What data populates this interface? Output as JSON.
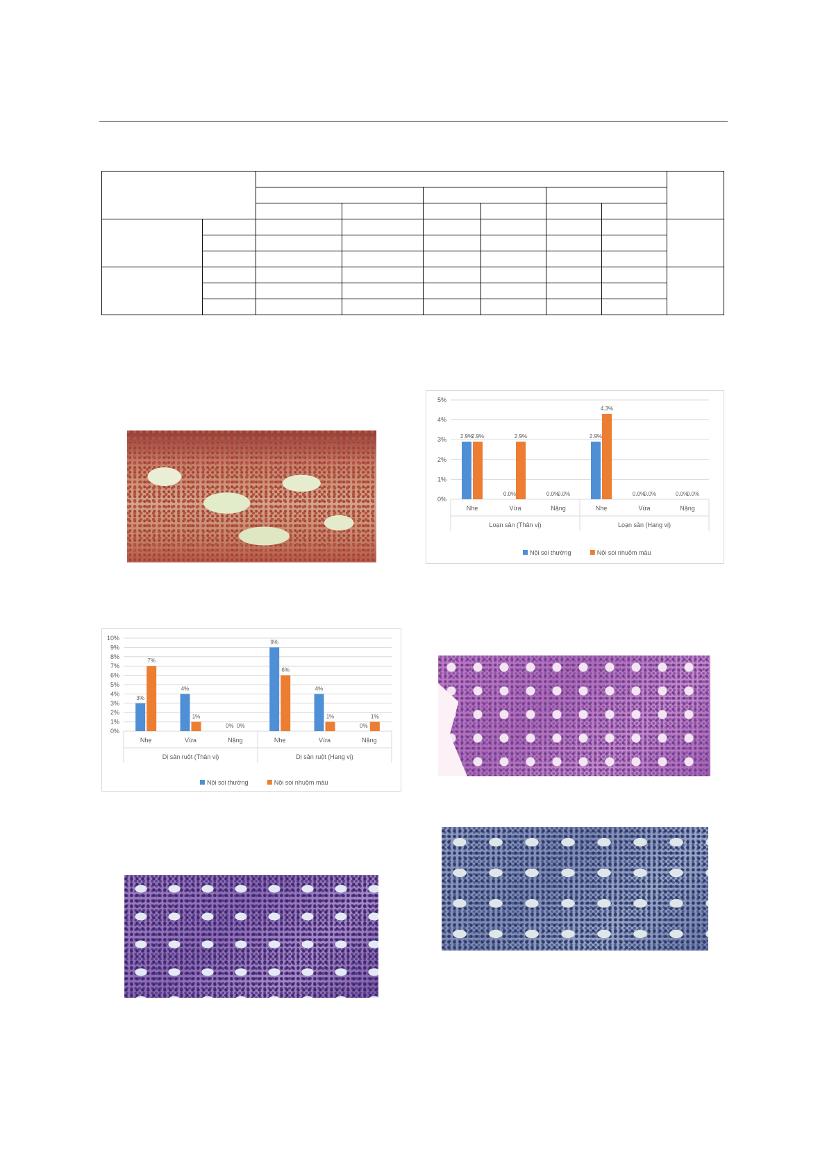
{
  "chart_data": [
    {
      "type": "bar",
      "title": "",
      "categories": [
        "Nhẹ",
        "Vừa",
        "Nặng",
        "Nhẹ",
        "Vừa",
        "Nặng"
      ],
      "group_labels": [
        "Loạn sản (Thân vị)",
        "Loạn sản (Hang vị)"
      ],
      "series": [
        {
          "name": "Nội soi thường",
          "color": "#4f8fd6",
          "values": [
            2.9,
            0,
            0,
            2.9,
            0,
            0
          ]
        },
        {
          "name": "Nội soi nhuộm màu",
          "color": "#ed7d31",
          "values": [
            2.9,
            2.9,
            0,
            4.3,
            0,
            0
          ]
        }
      ],
      "data_labels": [
        [
          "2.9%",
          "0.0%",
          "0.0%",
          "2.9%",
          "0.0%",
          "0.0%"
        ],
        [
          "2.9%",
          "2.9%",
          "0.0%",
          "4.3%",
          "0.0%",
          "0.0%"
        ]
      ],
      "ytick_labels": [
        "0%",
        "1%",
        "2%",
        "3%",
        "4%",
        "5%"
      ],
      "ylim": [
        0,
        5
      ],
      "legend_position": "bottom",
      "grid": true
    },
    {
      "type": "bar",
      "title": "",
      "categories": [
        "Nhẹ",
        "Vừa",
        "Nặng",
        "Nhẹ",
        "Vừa",
        "Nặng"
      ],
      "group_labels": [
        "Dị sản ruột (Thân vị)",
        "Dị sản ruột (Hang vị)"
      ],
      "series": [
        {
          "name": "Nội soi thường",
          "color": "#4f8fd6",
          "values": [
            3,
            4,
            0,
            9,
            4,
            0
          ]
        },
        {
          "name": "Nội soi nhuộm màu",
          "color": "#ed7d31",
          "values": [
            7,
            1,
            0,
            6,
            1,
            1
          ]
        }
      ],
      "data_labels": [
        [
          "3%",
          "4%",
          "0%",
          "9%",
          "4%",
          "0%"
        ],
        [
          "7%",
          "1%",
          "0%",
          "6%",
          "1%",
          "1%"
        ]
      ],
      "ytick_labels": [
        "0%",
        "1%",
        "2%",
        "3%",
        "4%",
        "5%",
        "6%",
        "7%",
        "8%",
        "9%",
        "10%"
      ],
      "ylim": [
        0,
        10
      ],
      "legend_position": "bottom",
      "grid": true
    }
  ]
}
